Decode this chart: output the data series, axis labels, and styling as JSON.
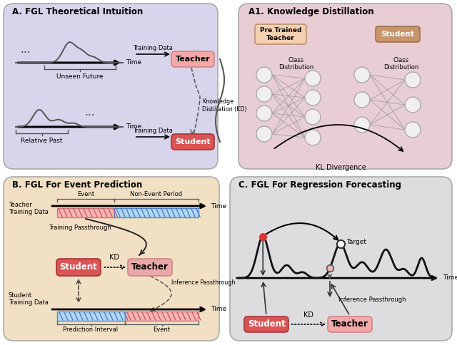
{
  "fig_width": 6.4,
  "fig_height": 4.84,
  "panel_A_bg": "#d8d4eb",
  "panel_A1_bg": "#e8cdd4",
  "panel_B_bg": "#f2e0c4",
  "panel_C_bg": "#dddde0",
  "teacher_pink_light": "#f5a8a8",
  "teacher_pink_mid": "#eba8a8",
  "student_red": "#d95555",
  "teacher_tan": "#c8956a",
  "title_A": "A. FGL Theoretical Intuition",
  "title_A1": "A1. Knowledge Distillation",
  "title_B": "B. FGL For Event Prediction",
  "title_C": "C. FGL For Regression Forecasting"
}
